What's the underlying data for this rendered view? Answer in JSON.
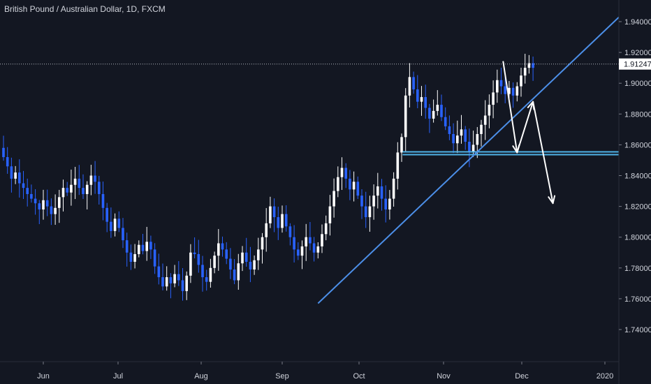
{
  "chart_data": {
    "type": "candlestick",
    "title": "British Pound / Australian Dollar, 1D, FXCM",
    "ylim": [
      1.73,
      1.95
    ],
    "y_ticks": [
      "1.94000",
      "1.92000",
      "1.90000",
      "1.88000",
      "1.86000",
      "1.84000",
      "1.82000",
      "1.80000",
      "1.78000",
      "1.76000",
      "1.74000"
    ],
    "x_ticks": [
      "Jun",
      "Jul",
      "Aug",
      "Sep",
      "Oct",
      "Nov",
      "Dec",
      "2020"
    ],
    "last_price": "1.91247",
    "grid": false,
    "colors": {
      "background": "#131722",
      "up": "#ffffff",
      "down": "#2962ff",
      "line": "#4c8fe8",
      "support": "#4fb3e8",
      "arrow": "#ffffff",
      "price_tag": "#ffffff"
    },
    "closes": [
      1.852,
      1.846,
      1.838,
      1.842,
      1.835,
      1.832,
      1.828,
      1.825,
      1.822,
      1.818,
      1.824,
      1.82,
      1.815,
      1.819,
      1.826,
      1.832,
      1.829,
      1.834,
      1.838,
      1.832,
      1.828,
      1.834,
      1.84,
      1.836,
      1.828,
      1.819,
      1.81,
      1.804,
      1.812,
      1.806,
      1.798,
      1.79,
      1.784,
      1.789,
      1.795,
      1.791,
      1.797,
      1.792,
      1.781,
      1.774,
      1.768,
      1.774,
      1.77,
      1.776,
      1.772,
      1.765,
      1.775,
      1.79,
      1.789,
      1.782,
      1.774,
      1.771,
      1.78,
      1.788,
      1.796,
      1.792,
      1.786,
      1.779,
      1.772,
      1.783,
      1.79,
      1.784,
      1.779,
      1.785,
      1.792,
      1.8,
      1.809,
      1.82,
      1.813,
      1.806,
      1.815,
      1.807,
      1.8,
      1.792,
      1.788,
      1.794,
      1.8,
      1.796,
      1.79,
      1.794,
      1.802,
      1.809,
      1.82,
      1.83,
      1.839,
      1.845,
      1.838,
      1.831,
      1.836,
      1.827,
      1.82,
      1.813,
      1.82,
      1.827,
      1.833,
      1.825,
      1.818,
      1.825,
      1.838,
      1.855,
      1.865,
      1.892,
      1.904,
      1.896,
      1.888,
      1.891,
      1.884,
      1.877,
      1.882,
      1.886,
      1.878,
      1.872,
      1.867,
      1.861,
      1.866,
      1.87,
      1.862,
      1.855,
      1.86,
      1.867,
      1.873,
      1.879,
      1.886,
      1.894,
      1.902,
      1.898,
      1.893,
      1.897,
      1.892,
      1.898,
      1.905,
      1.91,
      1.913,
      1.91
    ],
    "annotations": [
      {
        "type": "horizontal-line",
        "price": 1.8545,
        "from_index": 102,
        "label": ""
      },
      {
        "type": "trend-line",
        "from": [
          79,
          1.757
        ],
        "to": [
          142,
          1.912
        ],
        "label": ""
      },
      {
        "type": "dotted-line",
        "price": 1.91247,
        "label": ""
      },
      {
        "type": "arrow-path",
        "points": [
          [
            125.5,
            1.914
          ],
          [
            129,
            1.855
          ],
          [
            133,
            1.888
          ],
          [
            138,
            1.822
          ]
        ],
        "label": ""
      }
    ]
  }
}
